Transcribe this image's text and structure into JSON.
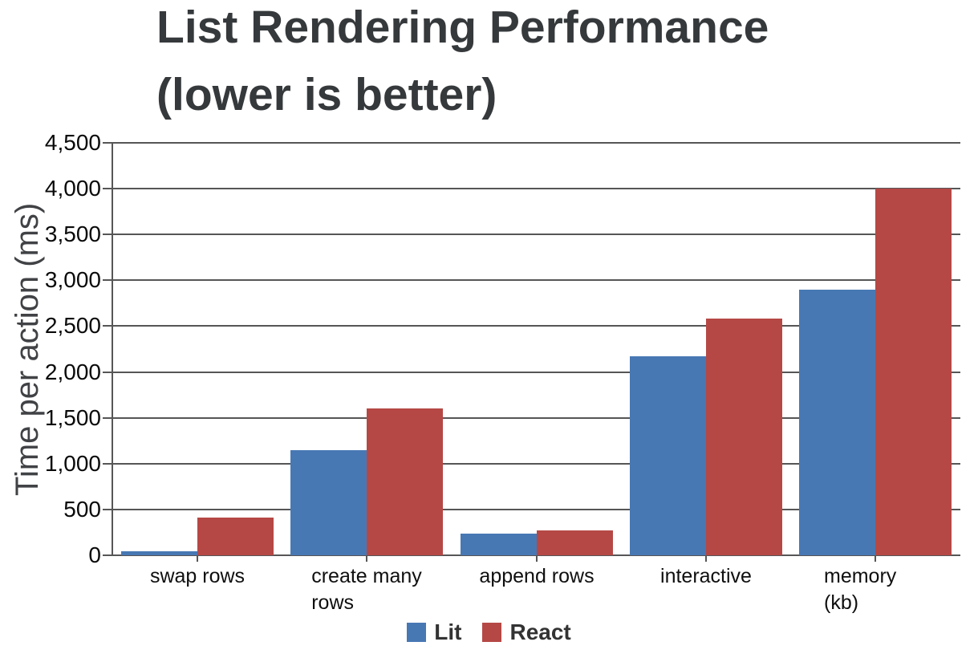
{
  "title": "List Rendering Performance\n(lower is better)",
  "y_axis_title": "Time per action (ms)",
  "chart_data": {
    "type": "bar",
    "title": "List Rendering Performance (lower is better)",
    "xlabel": "",
    "ylabel": "Time per action (ms)",
    "categories": [
      "swap rows",
      "create many\nrows",
      "append rows",
      "interactive",
      "memory (kb)"
    ],
    "series": [
      {
        "name": "Lit",
        "color": "#4878b4",
        "values": [
          40,
          1150,
          240,
          2175,
          2900
        ]
      },
      {
        "name": "React",
        "color": "#b54845",
        "values": [
          410,
          1600,
          275,
          2580,
          4000
        ]
      }
    ],
    "ylim": [
      0,
      4500
    ],
    "ytick_step": 500,
    "ytick_labels": [
      "0",
      "500",
      "1,000",
      "1,500",
      "2,000",
      "2,500",
      "3,000",
      "3,500",
      "4,000",
      "4,500"
    ],
    "grid": true,
    "legend_position": "bottom",
    "colors": {
      "grid": "#565656",
      "axis": "#565656",
      "title_text": "#36393b",
      "axis_title_text": "#404245",
      "tick_text": "#0a0a0a",
      "legend_text": "#333333",
      "background": "#ffffff"
    }
  }
}
